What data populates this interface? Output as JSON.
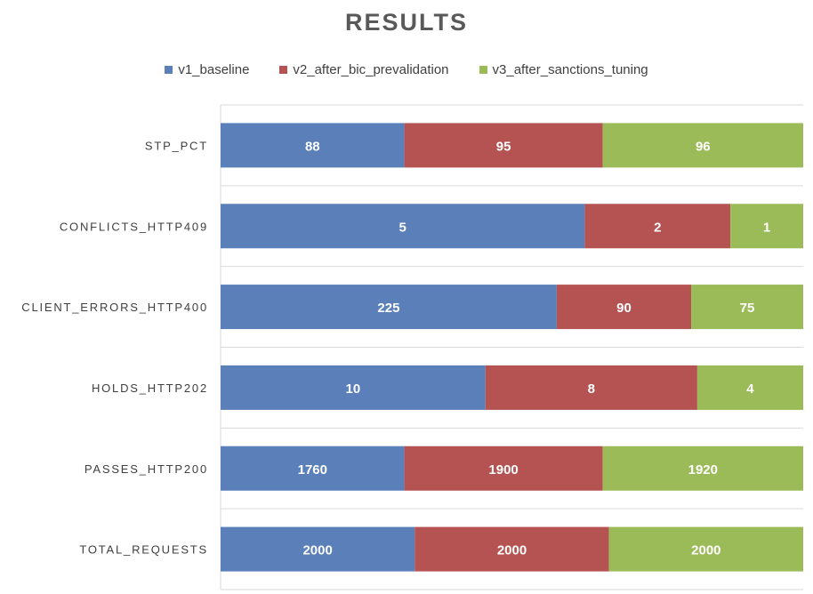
{
  "chart_data": {
    "type": "bar",
    "orientation": "horizontal",
    "stacking": "percent",
    "title": "RESULTS",
    "xlabel": "",
    "ylabel": "",
    "categories": [
      "STP_PCT",
      "CONFLICTS_HTTP409",
      "CLIENT_ERRORS_HTTP400",
      "HOLDS_HTTP202",
      "PASSES_HTTP200",
      "TOTAL_REQUESTS"
    ],
    "series": [
      {
        "name": "v1_baseline",
        "color": "#5a7fb9",
        "values": [
          88,
          5,
          225,
          10,
          1760,
          2000
        ]
      },
      {
        "name": "v2_after_bic_prevalidation",
        "color": "#b45351",
        "values": [
          95,
          2,
          90,
          8,
          1900,
          2000
        ]
      },
      {
        "name": "v3_after_sanctions_tuning",
        "color": "#9bbb59",
        "values": [
          96,
          1,
          75,
          4,
          1920,
          2000
        ]
      }
    ],
    "legend_position": "top",
    "grid": false
  }
}
